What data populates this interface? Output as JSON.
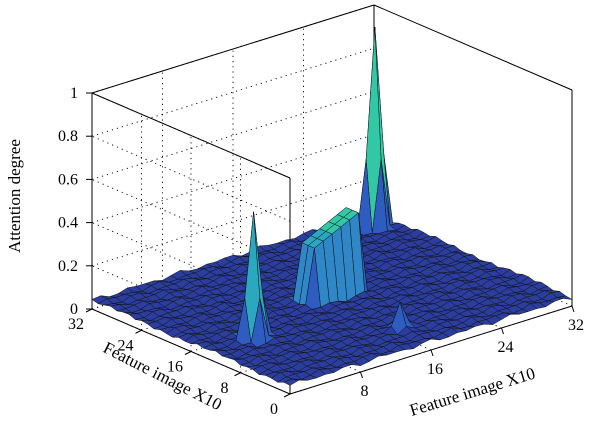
{
  "chart_data": {
    "type": "surface",
    "xlabel": "Feature image X10",
    "ylabel": "Feature image X10",
    "zlabel": "Attention degree",
    "x_ticks": [
      "8",
      "16",
      "24",
      "32"
    ],
    "y_ticks": [
      "0",
      "8",
      "16",
      "24",
      "32"
    ],
    "z_ticks": [
      "0",
      "0.2",
      "0.4",
      "0.6",
      "0.8",
      "1"
    ],
    "xlim": [
      0,
      32
    ],
    "ylim": [
      0,
      32
    ],
    "zlim": [
      0,
      1
    ],
    "grid": true,
    "colormap": [
      "#2b3ea0",
      "#2f5cc0",
      "#2f87c8",
      "#29a8c0",
      "#32c8a6",
      "#6ee08e"
    ],
    "base_level": 0.04,
    "features": [
      {
        "x": 5,
        "y": 13,
        "height": 0.62
      },
      {
        "x": 30,
        "y": 29,
        "height": 0.96
      },
      {
        "x": 16,
        "y": 5,
        "height": 0.16
      }
    ]
  }
}
